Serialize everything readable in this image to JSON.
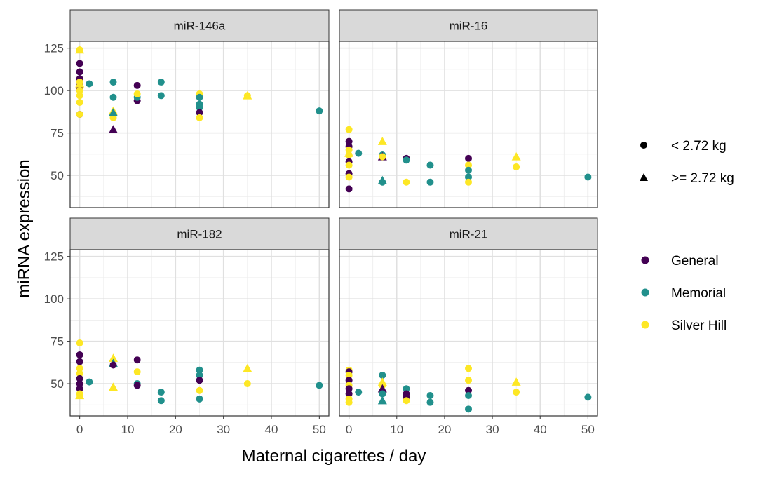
{
  "chart_data": {
    "type": "scatter",
    "layout": "facet-grid-2x2",
    "xlabel": "Maternal cigarettes / day",
    "ylabel": "miRNA expression",
    "xlim": [
      -2,
      52
    ],
    "ylim": [
      31,
      129
    ],
    "x_ticks": [
      0,
      10,
      20,
      30,
      40,
      50
    ],
    "y_ticks": [
      50,
      75,
      100,
      125
    ],
    "grid": true,
    "legend_placement": "right",
    "color_legend": [
      {
        "label": "General",
        "color": "#440154"
      },
      {
        "label": "Memorial",
        "color": "#21908C"
      },
      {
        "label": "Silver Hill",
        "color": "#FDE725"
      }
    ],
    "shape_legend": [
      {
        "label": "< 2.72 kg",
        "shape": "circle"
      },
      {
        "label": ">= 2.72 kg",
        "shape": "triangle"
      }
    ],
    "facets": [
      {
        "title": "miR-146a",
        "points": [
          {
            "x": 0,
            "y": 116,
            "group": "General",
            "shape": "circle"
          },
          {
            "x": 0,
            "y": 111,
            "group": "General",
            "shape": "circle"
          },
          {
            "x": 0,
            "y": 107,
            "group": "General",
            "shape": "circle"
          },
          {
            "x": 0,
            "y": 103,
            "group": "General",
            "shape": "circle"
          },
          {
            "x": 0,
            "y": 101,
            "group": "General",
            "shape": "circle"
          },
          {
            "x": 0,
            "y": 86,
            "group": "General",
            "shape": "circle"
          },
          {
            "x": 0,
            "y": 124,
            "group": "Silver Hill",
            "shape": "circle"
          },
          {
            "x": 0,
            "y": 105,
            "group": "Silver Hill",
            "shape": "circle"
          },
          {
            "x": 0,
            "y": 100,
            "group": "Silver Hill",
            "shape": "circle"
          },
          {
            "x": 0,
            "y": 97,
            "group": "Silver Hill",
            "shape": "circle"
          },
          {
            "x": 0,
            "y": 93,
            "group": "Silver Hill",
            "shape": "circle"
          },
          {
            "x": 0,
            "y": 86,
            "group": "Silver Hill",
            "shape": "circle"
          },
          {
            "x": 0,
            "y": 124,
            "group": "Silver Hill",
            "shape": "triangle"
          },
          {
            "x": 0,
            "y": 104,
            "group": "Silver Hill",
            "shape": "triangle"
          },
          {
            "x": 2,
            "y": 104,
            "group": "Memorial",
            "shape": "circle"
          },
          {
            "x": 7,
            "y": 105,
            "group": "Memorial",
            "shape": "circle"
          },
          {
            "x": 7,
            "y": 96,
            "group": "Memorial",
            "shape": "circle"
          },
          {
            "x": 7,
            "y": 84,
            "group": "Silver Hill",
            "shape": "circle"
          },
          {
            "x": 7,
            "y": 88,
            "group": "Silver Hill",
            "shape": "triangle"
          },
          {
            "x": 7,
            "y": 87,
            "group": "Memorial",
            "shape": "triangle"
          },
          {
            "x": 7,
            "y": 77,
            "group": "General",
            "shape": "triangle"
          },
          {
            "x": 12,
            "y": 103,
            "group": "General",
            "shape": "circle"
          },
          {
            "x": 12,
            "y": 94,
            "group": "General",
            "shape": "circle"
          },
          {
            "x": 12,
            "y": 96,
            "group": "Memorial",
            "shape": "circle"
          },
          {
            "x": 12,
            "y": 98,
            "group": "Silver Hill",
            "shape": "circle"
          },
          {
            "x": 17,
            "y": 105,
            "group": "Memorial",
            "shape": "circle"
          },
          {
            "x": 17,
            "y": 97,
            "group": "Memorial",
            "shape": "circle"
          },
          {
            "x": 25,
            "y": 98,
            "group": "Silver Hill",
            "shape": "circle"
          },
          {
            "x": 25,
            "y": 96,
            "group": "Memorial",
            "shape": "circle"
          },
          {
            "x": 25,
            "y": 92,
            "group": "Memorial",
            "shape": "circle"
          },
          {
            "x": 25,
            "y": 90,
            "group": "Memorial",
            "shape": "circle"
          },
          {
            "x": 25,
            "y": 87,
            "group": "General",
            "shape": "circle"
          },
          {
            "x": 25,
            "y": 84,
            "group": "Silver Hill",
            "shape": "circle"
          },
          {
            "x": 35,
            "y": 97,
            "group": "Silver Hill",
            "shape": "circle"
          },
          {
            "x": 35,
            "y": 97,
            "group": "Silver Hill",
            "shape": "triangle"
          },
          {
            "x": 50,
            "y": 88,
            "group": "Memorial",
            "shape": "circle"
          }
        ]
      },
      {
        "title": "miR-16",
        "points": [
          {
            "x": 0,
            "y": 77,
            "group": "Silver Hill",
            "shape": "circle"
          },
          {
            "x": 0,
            "y": 70,
            "group": "General",
            "shape": "circle"
          },
          {
            "x": 0,
            "y": 67,
            "group": "General",
            "shape": "circle"
          },
          {
            "x": 0,
            "y": 65,
            "group": "Silver Hill",
            "shape": "circle"
          },
          {
            "x": 0,
            "y": 62,
            "group": "Silver Hill",
            "shape": "circle"
          },
          {
            "x": 0,
            "y": 58,
            "group": "General",
            "shape": "circle"
          },
          {
            "x": 0,
            "y": 56,
            "group": "Silver Hill",
            "shape": "circle"
          },
          {
            "x": 0,
            "y": 51,
            "group": "General",
            "shape": "circle"
          },
          {
            "x": 0,
            "y": 49,
            "group": "Silver Hill",
            "shape": "circle"
          },
          {
            "x": 0,
            "y": 42,
            "group": "General",
            "shape": "circle"
          },
          {
            "x": 0,
            "y": 63,
            "group": "Silver Hill",
            "shape": "triangle"
          },
          {
            "x": 2,
            "y": 63,
            "group": "Memorial",
            "shape": "circle"
          },
          {
            "x": 7,
            "y": 70,
            "group": "Silver Hill",
            "shape": "triangle"
          },
          {
            "x": 7,
            "y": 62,
            "group": "Memorial",
            "shape": "circle"
          },
          {
            "x": 7,
            "y": 61,
            "group": "General",
            "shape": "triangle"
          },
          {
            "x": 7,
            "y": 61,
            "group": "Silver Hill",
            "shape": "circle"
          },
          {
            "x": 7,
            "y": 47,
            "group": "Memorial",
            "shape": "triangle"
          },
          {
            "x": 7,
            "y": 46,
            "group": "Memorial",
            "shape": "circle"
          },
          {
            "x": 12,
            "y": 60,
            "group": "General",
            "shape": "circle"
          },
          {
            "x": 12,
            "y": 59,
            "group": "Memorial",
            "shape": "circle"
          },
          {
            "x": 12,
            "y": 46,
            "group": "Silver Hill",
            "shape": "circle"
          },
          {
            "x": 17,
            "y": 56,
            "group": "Memorial",
            "shape": "circle"
          },
          {
            "x": 17,
            "y": 46,
            "group": "Memorial",
            "shape": "circle"
          },
          {
            "x": 25,
            "y": 60,
            "group": "General",
            "shape": "circle"
          },
          {
            "x": 25,
            "y": 56,
            "group": "Silver Hill",
            "shape": "circle"
          },
          {
            "x": 25,
            "y": 53,
            "group": "Memorial",
            "shape": "circle"
          },
          {
            "x": 25,
            "y": 49,
            "group": "Memorial",
            "shape": "circle"
          },
          {
            "x": 25,
            "y": 46,
            "group": "Silver Hill",
            "shape": "circle"
          },
          {
            "x": 35,
            "y": 61,
            "group": "Silver Hill",
            "shape": "triangle"
          },
          {
            "x": 35,
            "y": 55,
            "group": "Silver Hill",
            "shape": "circle"
          },
          {
            "x": 50,
            "y": 49,
            "group": "Memorial",
            "shape": "circle"
          }
        ]
      },
      {
        "title": "miR-182",
        "points": [
          {
            "x": 0,
            "y": 74,
            "group": "Silver Hill",
            "shape": "circle"
          },
          {
            "x": 0,
            "y": 67,
            "group": "General",
            "shape": "circle"
          },
          {
            "x": 0,
            "y": 63,
            "group": "General",
            "shape": "circle"
          },
          {
            "x": 0,
            "y": 59,
            "group": "Silver Hill",
            "shape": "circle"
          },
          {
            "x": 0,
            "y": 56,
            "group": "Silver Hill",
            "shape": "circle"
          },
          {
            "x": 0,
            "y": 53,
            "group": "General",
            "shape": "circle"
          },
          {
            "x": 0,
            "y": 50,
            "group": "General",
            "shape": "circle"
          },
          {
            "x": 0,
            "y": 47,
            "group": "General",
            "shape": "circle"
          },
          {
            "x": 0,
            "y": 44,
            "group": "Silver Hill",
            "shape": "circle"
          },
          {
            "x": 0,
            "y": 43,
            "group": "Silver Hill",
            "shape": "triangle"
          },
          {
            "x": 2,
            "y": 51,
            "group": "Memorial",
            "shape": "circle"
          },
          {
            "x": 7,
            "y": 65,
            "group": "Silver Hill",
            "shape": "triangle"
          },
          {
            "x": 7,
            "y": 62,
            "group": "Memorial",
            "shape": "triangle"
          },
          {
            "x": 7,
            "y": 61,
            "group": "General",
            "shape": "circle"
          },
          {
            "x": 7,
            "y": 48,
            "group": "Silver Hill",
            "shape": "triangle"
          },
          {
            "x": 12,
            "y": 64,
            "group": "General",
            "shape": "circle"
          },
          {
            "x": 12,
            "y": 57,
            "group": "Silver Hill",
            "shape": "circle"
          },
          {
            "x": 12,
            "y": 50,
            "group": "Memorial",
            "shape": "circle"
          },
          {
            "x": 12,
            "y": 49,
            "group": "General",
            "shape": "circle"
          },
          {
            "x": 17,
            "y": 45,
            "group": "Memorial",
            "shape": "circle"
          },
          {
            "x": 17,
            "y": 40,
            "group": "Memorial",
            "shape": "circle"
          },
          {
            "x": 25,
            "y": 58,
            "group": "Memorial",
            "shape": "circle"
          },
          {
            "x": 25,
            "y": 55,
            "group": "Memorial",
            "shape": "circle"
          },
          {
            "x": 25,
            "y": 52,
            "group": "General",
            "shape": "circle"
          },
          {
            "x": 25,
            "y": 46,
            "group": "Silver Hill",
            "shape": "circle"
          },
          {
            "x": 25,
            "y": 41,
            "group": "Memorial",
            "shape": "circle"
          },
          {
            "x": 35,
            "y": 59,
            "group": "Silver Hill",
            "shape": "triangle"
          },
          {
            "x": 35,
            "y": 50,
            "group": "Silver Hill",
            "shape": "circle"
          },
          {
            "x": 50,
            "y": 49,
            "group": "Memorial",
            "shape": "circle"
          }
        ]
      },
      {
        "title": "miR-21",
        "points": [
          {
            "x": 0,
            "y": 58,
            "group": "Silver Hill",
            "shape": "circle"
          },
          {
            "x": 0,
            "y": 57,
            "group": "General",
            "shape": "circle"
          },
          {
            "x": 0,
            "y": 55,
            "group": "Silver Hill",
            "shape": "circle"
          },
          {
            "x": 0,
            "y": 52,
            "group": "General",
            "shape": "circle"
          },
          {
            "x": 0,
            "y": 49,
            "group": "Silver Hill",
            "shape": "circle"
          },
          {
            "x": 0,
            "y": 47,
            "group": "General",
            "shape": "circle"
          },
          {
            "x": 0,
            "y": 44,
            "group": "General",
            "shape": "circle"
          },
          {
            "x": 0,
            "y": 41,
            "group": "Silver Hill",
            "shape": "circle"
          },
          {
            "x": 0,
            "y": 39,
            "group": "Silver Hill",
            "shape": "circle"
          },
          {
            "x": 2,
            "y": 45,
            "group": "Memorial",
            "shape": "circle"
          },
          {
            "x": 7,
            "y": 55,
            "group": "Memorial",
            "shape": "circle"
          },
          {
            "x": 7,
            "y": 51,
            "group": "Silver Hill",
            "shape": "triangle"
          },
          {
            "x": 7,
            "y": 49,
            "group": "Silver Hill",
            "shape": "circle"
          },
          {
            "x": 7,
            "y": 47,
            "group": "General",
            "shape": "triangle"
          },
          {
            "x": 7,
            "y": 44,
            "group": "Memorial",
            "shape": "circle"
          },
          {
            "x": 7,
            "y": 40,
            "group": "Memorial",
            "shape": "triangle"
          },
          {
            "x": 12,
            "y": 47,
            "group": "Memorial",
            "shape": "circle"
          },
          {
            "x": 12,
            "y": 44,
            "group": "General",
            "shape": "circle"
          },
          {
            "x": 12,
            "y": 42,
            "group": "General",
            "shape": "circle"
          },
          {
            "x": 12,
            "y": 40,
            "group": "Silver Hill",
            "shape": "circle"
          },
          {
            "x": 17,
            "y": 43,
            "group": "Memorial",
            "shape": "circle"
          },
          {
            "x": 17,
            "y": 39,
            "group": "Memorial",
            "shape": "circle"
          },
          {
            "x": 25,
            "y": 59,
            "group": "Silver Hill",
            "shape": "circle"
          },
          {
            "x": 25,
            "y": 52,
            "group": "Silver Hill",
            "shape": "circle"
          },
          {
            "x": 25,
            "y": 46,
            "group": "General",
            "shape": "circle"
          },
          {
            "x": 25,
            "y": 43,
            "group": "Memorial",
            "shape": "circle"
          },
          {
            "x": 25,
            "y": 35,
            "group": "Memorial",
            "shape": "circle"
          },
          {
            "x": 35,
            "y": 51,
            "group": "Silver Hill",
            "shape": "triangle"
          },
          {
            "x": 35,
            "y": 45,
            "group": "Silver Hill",
            "shape": "circle"
          },
          {
            "x": 50,
            "y": 42,
            "group": "Memorial",
            "shape": "circle"
          }
        ]
      }
    ]
  }
}
